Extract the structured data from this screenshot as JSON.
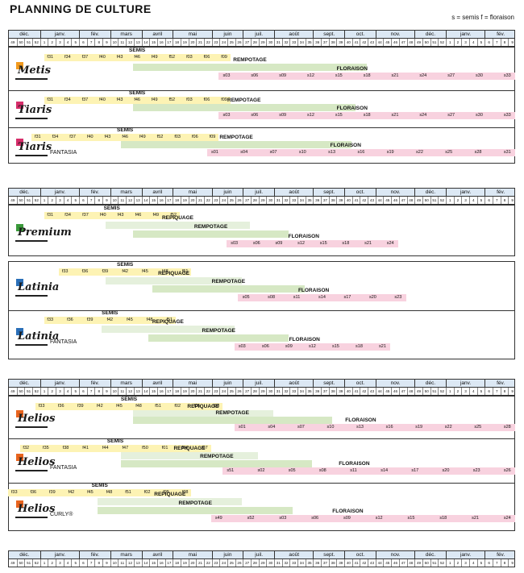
{
  "title": "PLANNING DE CULTURE",
  "legend_text": "s = semis f = floraison",
  "months": [
    "déc.",
    "janv.",
    "fév.",
    "mars",
    "avril",
    "mai",
    "juin",
    "juil.",
    "août",
    "sept.",
    "oct.",
    "nov.",
    "déc.",
    "janv.",
    "fév."
  ],
  "weeks": [
    "49",
    "50",
    "51",
    "52",
    "1",
    "2",
    "3",
    "4",
    "5",
    "6",
    "7",
    "8",
    "9",
    "10",
    "11",
    "12",
    "13",
    "14",
    "15",
    "16",
    "17",
    "18",
    "19",
    "20",
    "21",
    "22",
    "23",
    "24",
    "25",
    "26",
    "27",
    "28",
    "29",
    "30",
    "31",
    "32",
    "33",
    "34",
    "35",
    "36",
    "37",
    "38",
    "39",
    "40",
    "41",
    "42",
    "43",
    "44",
    "45",
    "46",
    "47",
    "48",
    "49",
    "50",
    "51",
    "52",
    "1",
    "2",
    "3",
    "4",
    "5",
    "6",
    "7",
    "8",
    "9"
  ],
  "panels": [
    {
      "rows": [
        {
          "logo": "Metis",
          "logo_color": "#f29a1e",
          "suffix": "",
          "phases": [
            {
              "label": "SEMIS",
              "color": "yellow",
              "start": 4.6,
              "end": 28.5
            },
            {
              "label": "REMPOTAGE",
              "color": "green",
              "start": 16,
              "end": 46
            },
            {
              "label": "FLORAISON",
              "color": "pink",
              "start": 27,
              "end": 65
            }
          ],
          "weeks_f": [
            "f31",
            "f34",
            "f37",
            "f40",
            "f43",
            "f46",
            "f49",
            "f52",
            "f03",
            "f06",
            "f09"
          ],
          "weeks_s": [
            "s03",
            "s06",
            "s09",
            "s12",
            "s15",
            "s18",
            "s21",
            "s24",
            "s27",
            "s30",
            "s33"
          ]
        },
        {
          "logo": "Tiaris",
          "logo_color": "#d62d6a",
          "suffix": "",
          "phases": [
            {
              "label": "SEMIS",
              "color": "yellow",
              "start": 4.6,
              "end": 28.5
            },
            {
              "label": "REMPOTAGE",
              "color": "green",
              "start": 16,
              "end": 44.5
            },
            {
              "label": "FLORAISON",
              "color": "pink",
              "start": 27,
              "end": 65
            }
          ],
          "weeks_f": [
            "f31",
            "f34",
            "f37",
            "f40",
            "f43",
            "f46",
            "f49",
            "f52",
            "f03",
            "f06",
            "f09"
          ],
          "weeks_s": [
            "s03",
            "s06",
            "s09",
            "s12",
            "s15",
            "s18",
            "s21",
            "s24",
            "s27",
            "s30",
            "s33"
          ]
        },
        {
          "logo": "Tiaris",
          "logo_color": "#d62d6a",
          "suffix": "FANTASIA",
          "phases": [
            {
              "label": "SEMIS",
              "color": "yellow",
              "start": 3,
              "end": 27
            },
            {
              "label": "REMPOTAGE",
              "color": "green",
              "start": 14.5,
              "end": 44
            },
            {
              "label": "FLORAISON",
              "color": "pink",
              "start": 25.5,
              "end": 65
            }
          ],
          "weeks_f": [
            "f31",
            "f34",
            "f37",
            "f40",
            "f43",
            "f46",
            "f49",
            "f52",
            "f03",
            "f06",
            "f09"
          ],
          "weeks_s": [
            "s01",
            "s04",
            "s07",
            "s10",
            "s13",
            "s16",
            "s19",
            "s22",
            "s25",
            "s28",
            "s31"
          ]
        }
      ]
    },
    {
      "rows": [
        {
          "logo": "Premium",
          "logo_color": "#3a9a3a",
          "suffix": "",
          "phases": [
            {
              "label": "SEMIS",
              "color": "yellow",
              "start": 4.6,
              "end": 22
            },
            {
              "label": "REPIQUAGE",
              "color": "lightgreen",
              "start": 12.5,
              "end": 31
            },
            {
              "label": "REMPOTAGE",
              "color": "green",
              "start": 16,
              "end": 36
            },
            {
              "label": "FLORAISON",
              "color": "pink",
              "start": 28,
              "end": 50
            }
          ],
          "weeks_f": [
            "f31",
            "f34",
            "f37",
            "f40",
            "f43",
            "f46",
            "f49",
            "f52"
          ],
          "weeks_s": [
            "s03",
            "s06",
            "s09",
            "s12",
            "s15",
            "s18",
            "s21",
            "s24"
          ]
        }
      ]
    },
    {
      "rows": [
        {
          "logo": "Latinia",
          "logo_color": "#2a6fb8",
          "suffix": "",
          "phases": [
            {
              "label": "SEMIS",
              "color": "yellow",
              "start": 6.5,
              "end": 23.5
            },
            {
              "label": "REPIQUAGE",
              "color": "lightgreen",
              "start": 12.5,
              "end": 30
            },
            {
              "label": "REMPOTAGE",
              "color": "green",
              "start": 18.5,
              "end": 38
            },
            {
              "label": "FLORAISON",
              "color": "pink",
              "start": 29.5,
              "end": 51
            }
          ],
          "weeks_f": [
            "f33",
            "f36",
            "f39",
            "f42",
            "f45",
            "f48",
            "f51"
          ],
          "weeks_s": [
            "s05",
            "s08",
            "s11",
            "s14",
            "s17",
            "s20",
            "s23"
          ]
        },
        {
          "logo": "Latinia",
          "logo_color": "#2a6fb8",
          "suffix": "FANTASIA",
          "phases": [
            {
              "label": "SEMIS",
              "color": "yellow",
              "start": 4.6,
              "end": 21.5
            },
            {
              "label": "REPIQUAGE",
              "color": "lightgreen",
              "start": 12,
              "end": 29
            },
            {
              "label": "REMPOTAGE",
              "color": "green",
              "start": 18,
              "end": 36
            },
            {
              "label": "FLORAISON",
              "color": "pink",
              "start": 29,
              "end": 49
            }
          ],
          "weeks_f": [
            "f33",
            "f36",
            "f39",
            "f42",
            "f45",
            "f48",
            "f51"
          ],
          "weeks_s": [
            "s03",
            "s06",
            "s09",
            "s12",
            "s15",
            "s18",
            "s21"
          ]
        }
      ]
    },
    {
      "rows": [
        {
          "logo": "Helios",
          "logo_color": "#e8641e",
          "suffix": "",
          "phases": [
            {
              "label": "SEMIS",
              "color": "yellow",
              "start": 3.5,
              "end": 27.5
            },
            {
              "label": "REPIQUAGE",
              "color": "lightgreen",
              "start": 16,
              "end": 34
            },
            {
              "label": "REMPOTAGE",
              "color": "green",
              "start": 16,
              "end": 41.5
            },
            {
              "label": "FLORAISON",
              "color": "pink",
              "start": 29,
              "end": 65
            }
          ],
          "weeks_f": [
            "f33",
            "f36",
            "f39",
            "f42",
            "f45",
            "f48",
            "f51",
            "f02",
            "f05",
            "f08"
          ],
          "weeks_s": [
            "s01",
            "s04",
            "s07",
            "s10",
            "s13",
            "s16",
            "s19",
            "s22",
            "s25",
            "s28"
          ]
        },
        {
          "logo": "Helios",
          "logo_color": "#e8641e",
          "suffix": "FANTASIA",
          "phases": [
            {
              "label": "SEMIS",
              "color": "yellow",
              "start": 1.5,
              "end": 26
            },
            {
              "label": "REPIQUAGE",
              "color": "lightgreen",
              "start": 14.5,
              "end": 32
            },
            {
              "label": "REMPOTAGE",
              "color": "green",
              "start": 14.5,
              "end": 39
            },
            {
              "label": "FLORAISON",
              "color": "pink",
              "start": 27.5,
              "end": 65
            }
          ],
          "weeks_f": [
            "f32",
            "f35",
            "f38",
            "f41",
            "f44",
            "f47",
            "f50",
            "f01",
            "f04",
            "f07"
          ],
          "weeks_s": [
            "s51",
            "s02",
            "s05",
            "s08",
            "s11",
            "s14",
            "s17",
            "s20",
            "s23",
            "s26"
          ]
        },
        {
          "logo": "Helios",
          "logo_color": "#e8641e",
          "suffix": "CURLY®",
          "phases": [
            {
              "label": "SEMIS",
              "color": "yellow",
              "start": 0,
              "end": 23.5
            },
            {
              "label": "REPIQUAGE",
              "color": "lightgreen",
              "start": 11.5,
              "end": 30
            },
            {
              "label": "REMPOTAGE",
              "color": "green",
              "start": 11.5,
              "end": 36.5
            },
            {
              "label": "FLORAISON",
              "color": "pink",
              "start": 26,
              "end": 65
            }
          ],
          "weeks_f": [
            "f33",
            "f36",
            "f39",
            "f42",
            "f45",
            "f48",
            "f51",
            "f02",
            "f05",
            "f08"
          ],
          "weeks_s": [
            "s49",
            "s52",
            "s03",
            "s06",
            "s09",
            "s12",
            "s15",
            "s18",
            "s21",
            "s24"
          ]
        }
      ]
    }
  ]
}
